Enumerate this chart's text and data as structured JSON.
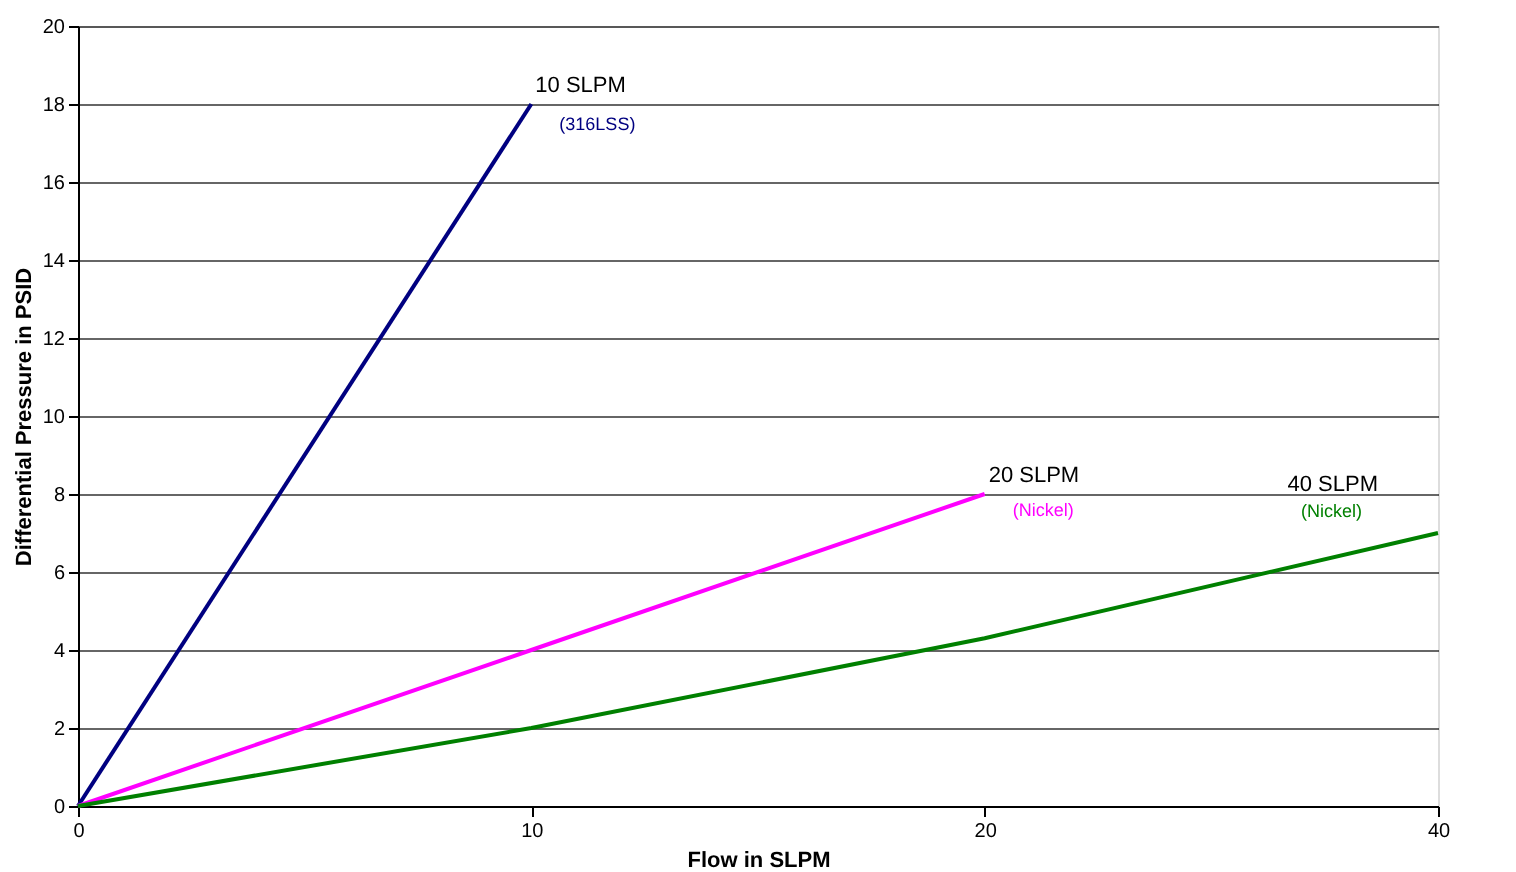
{
  "chart_data": {
    "type": "line",
    "xlabel": "Flow in SLPM",
    "ylabel": "Differential Pressure in PSID",
    "categories": [
      "0",
      "10",
      "20",
      "40"
    ],
    "series": [
      {
        "name": "10 SLPM",
        "color": "#000080",
        "values": [
          0,
          18,
          null,
          null
        ]
      },
      {
        "name": "20 SLPM",
        "color": "#ff00ff",
        "values": [
          0,
          4,
          8,
          null
        ]
      },
      {
        "name": "40 SLPM",
        "color": "#008000",
        "values": [
          0,
          2,
          4.3,
          7
        ]
      }
    ],
    "annotations": [
      "(316LSS)",
      "(Nickel)",
      "(Nickel)"
    ],
    "ylim": [
      0,
      20
    ],
    "yticks": [
      0,
      2,
      4,
      6,
      8,
      10,
      12,
      14,
      16,
      18,
      20
    ],
    "grid": "y",
    "marker": "none",
    "line_style": "solid"
  }
}
